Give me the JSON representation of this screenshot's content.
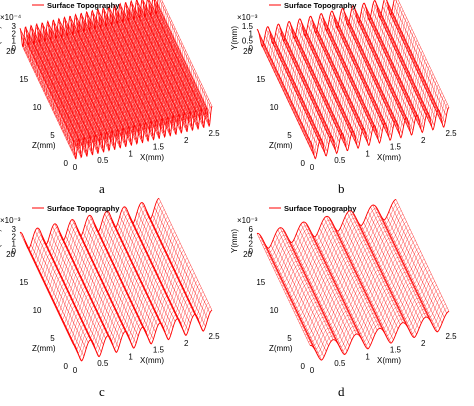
{
  "chart_data": [
    {
      "type": "3d-surface",
      "panel": "a",
      "caption": "a",
      "legend": "Surface Topography",
      "line_color": "#ff0000",
      "xlabel": "X(mm)",
      "ylabel": "Y(mm)",
      "zlabel": "Z(mm)",
      "x_ticks": [
        "0",
        "0.5",
        "1",
        "1.5",
        "2",
        "2.5"
      ],
      "z_ticks": [
        "0",
        "5",
        "10",
        "15",
        "20"
      ],
      "y_ticks": [
        "0",
        "1",
        "2",
        "3"
      ],
      "y_exponent": "×10⁻⁴",
      "xlim": [
        0,
        2.5
      ],
      "zlim": [
        0,
        20
      ],
      "ylim": [
        0,
        0.0003
      ],
      "ridge_count": 25,
      "amplitude_fraction": 0.9
    },
    {
      "type": "3d-surface",
      "panel": "b",
      "caption": "b",
      "legend": "Surface Topography",
      "line_color": "#ff0000",
      "xlabel": "X(mm)",
      "ylabel": "Y(mm)",
      "zlabel": "Z(mm)",
      "x_ticks": [
        "0",
        "0.5",
        "1",
        "1.5",
        "2",
        "2.5"
      ],
      "z_ticks": [
        "0",
        "5",
        "10",
        "15",
        "20"
      ],
      "y_ticks": [
        "0",
        "0.5",
        "1",
        "1.5"
      ],
      "y_exponent": "×10⁻³",
      "xlim": [
        0,
        2.5
      ],
      "zlim": [
        0,
        20
      ],
      "ylim": [
        0,
        0.0015
      ],
      "ridge_count": 13,
      "amplitude_fraction": 0.85
    },
    {
      "type": "3d-surface",
      "panel": "c",
      "caption": "c",
      "legend": "Surface Topography",
      "line_color": "#ff0000",
      "xlabel": "X(mm)",
      "ylabel": "Y(mm)",
      "zlabel": "Z(mm)",
      "x_ticks": [
        "0",
        "0.5",
        "1",
        "1.5",
        "2",
        "2.5"
      ],
      "z_ticks": [
        "0",
        "5",
        "10",
        "15",
        "20"
      ],
      "y_ticks": [
        "0",
        "1",
        "2",
        "3"
      ],
      "y_exponent": "×10⁻³",
      "xlim": [
        0,
        2.5
      ],
      "zlim": [
        0,
        20
      ],
      "ylim": [
        0,
        0.003
      ],
      "ridge_count": 8,
      "amplitude_fraction": 0.85
    },
    {
      "type": "3d-surface",
      "panel": "d",
      "caption": "d",
      "legend": "Surface Topography",
      "line_color": "#ff0000",
      "xlabel": "X(mm)",
      "ylabel": "Y(mm)",
      "zlabel": "Z(mm)",
      "x_ticks": [
        "0",
        "0.5",
        "1",
        "1.5",
        "2",
        "2.5"
      ],
      "z_ticks": [
        "0",
        "5",
        "10",
        "15",
        "20"
      ],
      "y_ticks": [
        "0",
        "2",
        "4",
        "6"
      ],
      "y_exponent": "×10⁻³",
      "xlim": [
        0,
        2.5
      ],
      "zlim": [
        0,
        20
      ],
      "ylim": [
        0,
        0.006
      ],
      "ridge_count": 6,
      "amplitude_fraction": 0.8
    }
  ]
}
